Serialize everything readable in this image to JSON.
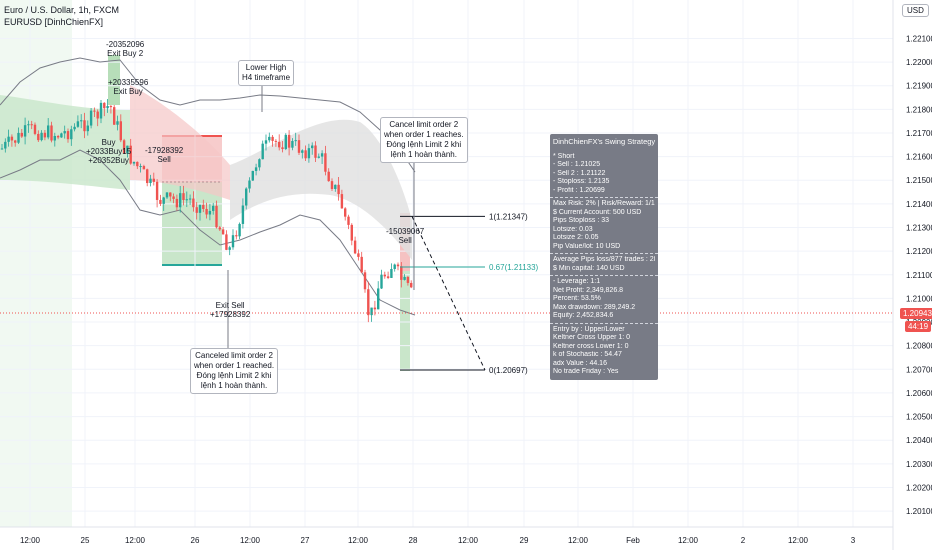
{
  "header": {
    "title": "Euro / U.S. Dollar, 1h, FXCM",
    "indicator": "EURUSD [DinhChienFX]"
  },
  "currency_button": "USD",
  "price_tags": {
    "current": "1.20943",
    "countdown": "44:19"
  },
  "colors": {
    "up": "#26a69a",
    "down": "#ef5350",
    "keltner": "#787b86",
    "red_zone": "#f5c6c6",
    "green_zone": "#c8e6c9",
    "gray_cloud": "#e0e0e0"
  },
  "chart_data": {
    "type": "candlestick",
    "yticks": [
      "1.22100",
      "1.22000",
      "1.21900",
      "1.21800",
      "1.21700",
      "1.21600",
      "1.21500",
      "1.21400",
      "1.21300",
      "1.21200",
      "1.21100",
      "1.21000",
      "1.20900",
      "1.20800",
      "1.20700",
      "1.20600",
      "1.20500",
      "1.20400",
      "1.20300",
      "1.20200",
      "1.20100"
    ],
    "xticks": [
      "12:00",
      "25",
      "12:00",
      "26",
      "12:00",
      "27",
      "12:00",
      "28",
      "12:00",
      "29",
      "12:00",
      "Feb",
      "12:00",
      "2",
      "12:00",
      "3"
    ],
    "ylim": [
      1.2002,
      1.2225
    ],
    "levels": [
      {
        "label": "1(1.21347)",
        "price": 1.21347,
        "color": "#131722"
      },
      {
        "label": "0.67(1.21133)",
        "price": 1.21133,
        "color": "#26a69a"
      },
      {
        "label": "0(1.20697)",
        "price": 1.20697,
        "color": "#131722"
      }
    ]
  },
  "annotations": {
    "exit_buy2": [
      "-20352096",
      "Exit Buy 2"
    ],
    "exit_buy": [
      "+20335596",
      "Exit Buy"
    ],
    "buy": [
      "Buy",
      "+2033Buy15",
      "+20352Buy"
    ],
    "sell_left": [
      "-17928392",
      "Sell"
    ],
    "exit_sell": [
      "Exit Sell",
      "+17928392"
    ],
    "sell_right": [
      "-15039067",
      "Sell"
    ],
    "lower_high": [
      "Lower High",
      "H4 timeframe"
    ],
    "cancel_top": [
      "Cancel limit order 2",
      "when order 1 reaches.",
      "Đóng lệnh Limit 2 khi",
      "lệnh 1 hoàn thành."
    ],
    "cancel_bottom": [
      "Canceled limit order 2",
      "when order 1 reached.",
      "Đóng lệnh Limit 2 khi",
      "lệnh 1 hoàn thành."
    ]
  },
  "panel": {
    "title": "DinhChienFX's Swing Strategy",
    "short": [
      "* Short",
      " - Sell    : 1.21025",
      " - Sell 2 : 1.21122",
      " - Stoploss: 1.2135",
      " - Profit  : 1.20699"
    ],
    "risk": [
      "Max Risk: 2% | Risk/Reward: 1/1",
      "$ Current Account: 500 USD",
      "Pips Stoploss : 33",
      "Lotsize: 0.03",
      "Lotsize 2: 0.05",
      "Pip Value/lot: 10 USD"
    ],
    "pips": [
      "Average Pips loss/877 trades : 28",
      "$ Min capital: 140 USD"
    ],
    "stats": [
      "- Leverage: 1:1",
      "Net Profit: 2,349,826.8",
      "Percent: 53.5%",
      "Max drawdown: 289,249.2",
      "Equity: 2,452,834.6"
    ],
    "params": [
      "Entry by : Upper/Lower",
      "Keltner Cross Upper 1: 0",
      "Keltner cross Lower 1: 0",
      "k of Stochastic : 54.47",
      "adx Value : 44.16",
      "No trade Friday : Yes"
    ]
  }
}
